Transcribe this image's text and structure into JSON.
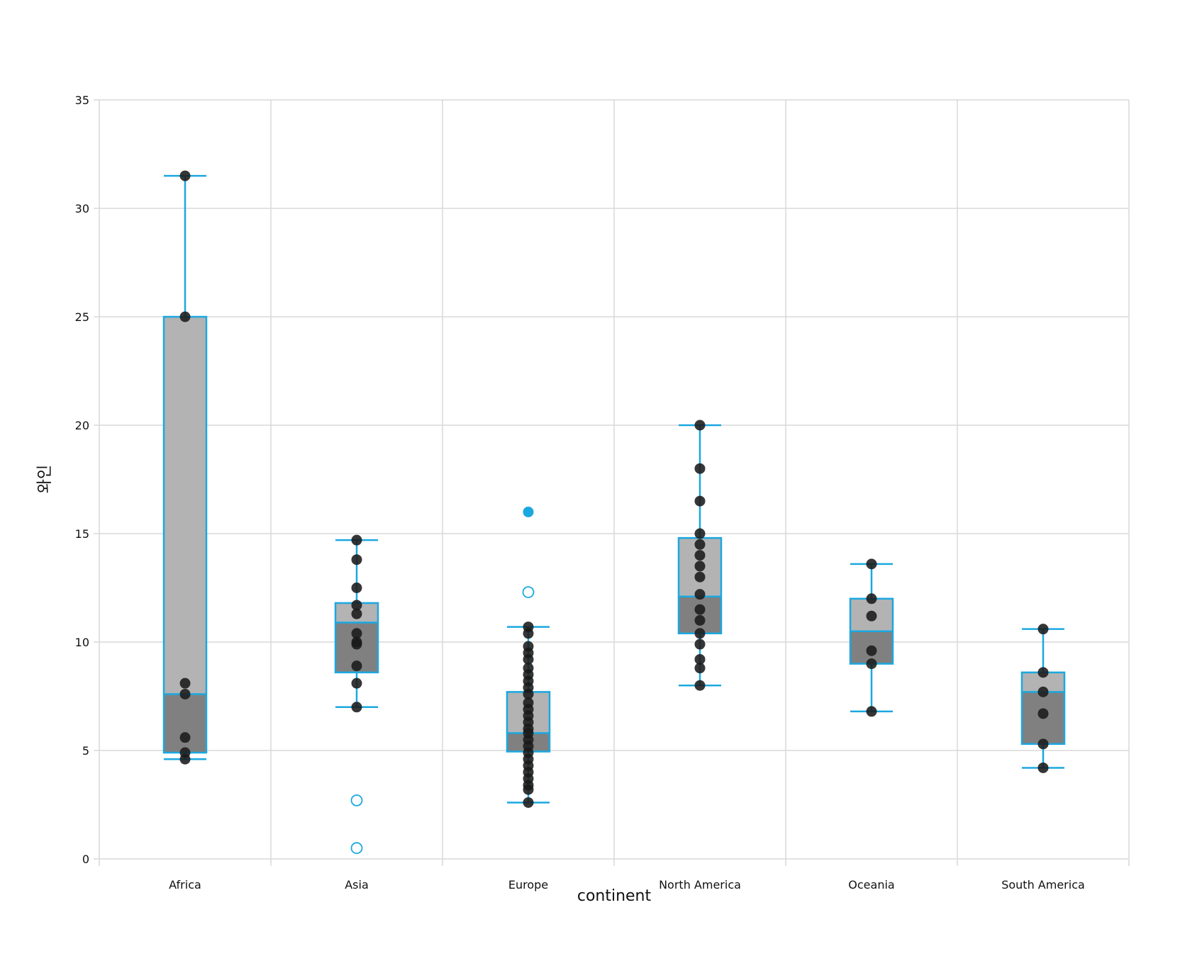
{
  "chart_data": {
    "type": "box",
    "xlabel": "continent",
    "ylabel": "와인",
    "ylim": [
      0,
      35
    ],
    "yticks": [
      0,
      5,
      10,
      15,
      20,
      25,
      30,
      35
    ],
    "grid": true,
    "colors": {
      "box_stroke": "#1ba8e0",
      "box_upper_fill": "#b3b3b3",
      "box_lower_fill": "#808080",
      "points": "#1a1a1a",
      "gridline": "#d9d9d9",
      "highlight_point": "#1ba8e0"
    },
    "categories": [
      {
        "name": "Africa",
        "q1": 4.9,
        "median": 7.6,
        "q3": 25.0,
        "whisker_low": 4.6,
        "whisker_high": 31.5,
        "points": [
          31.5,
          25.0,
          8.1,
          7.6,
          5.6,
          4.9,
          4.6
        ],
        "outliers": []
      },
      {
        "name": "Asia",
        "q1": 8.6,
        "median": 10.9,
        "q3": 11.8,
        "whisker_low": 7.0,
        "whisker_high": 14.7,
        "points": [
          14.7,
          13.8,
          12.5,
          11.7,
          11.3,
          10.4,
          10.0,
          9.9,
          8.9,
          8.1,
          7.0
        ],
        "outliers": [
          2.7,
          0.5
        ]
      },
      {
        "name": "Europe",
        "q1": 4.95,
        "median": 5.8,
        "q3": 7.7,
        "whisker_low": 2.6,
        "whisker_high": 10.7,
        "points": [
          10.7,
          10.4,
          9.8,
          9.5,
          9.2,
          8.8,
          8.5,
          8.2,
          7.9,
          7.6,
          7.2,
          6.9,
          6.6,
          6.3,
          6.0,
          5.8,
          5.5,
          5.2,
          4.9,
          4.6,
          4.3,
          4.0,
          3.7,
          3.4,
          3.2,
          2.6
        ],
        "outliers": [
          16.0,
          12.3
        ],
        "highlight_points": [
          16.0
        ]
      },
      {
        "name": "North America",
        "q1": 10.4,
        "median": 12.1,
        "q3": 14.8,
        "whisker_low": 8.0,
        "whisker_high": 20.0,
        "points": [
          20.0,
          18.0,
          16.5,
          15.0,
          14.5,
          14.0,
          13.5,
          13.0,
          12.2,
          11.5,
          11.0,
          10.4,
          9.9,
          9.2,
          8.8,
          8.0
        ],
        "outliers": []
      },
      {
        "name": "Oceania",
        "q1": 9.0,
        "median": 10.5,
        "q3": 12.0,
        "whisker_low": 6.8,
        "whisker_high": 13.6,
        "points": [
          13.6,
          12.0,
          11.2,
          9.6,
          9.0,
          6.8
        ],
        "outliers": []
      },
      {
        "name": "South America",
        "q1": 5.3,
        "median": 7.7,
        "q3": 8.6,
        "whisker_low": 4.2,
        "whisker_high": 10.6,
        "points": [
          10.6,
          8.6,
          7.7,
          6.7,
          5.3,
          4.2
        ],
        "outliers": []
      }
    ]
  }
}
